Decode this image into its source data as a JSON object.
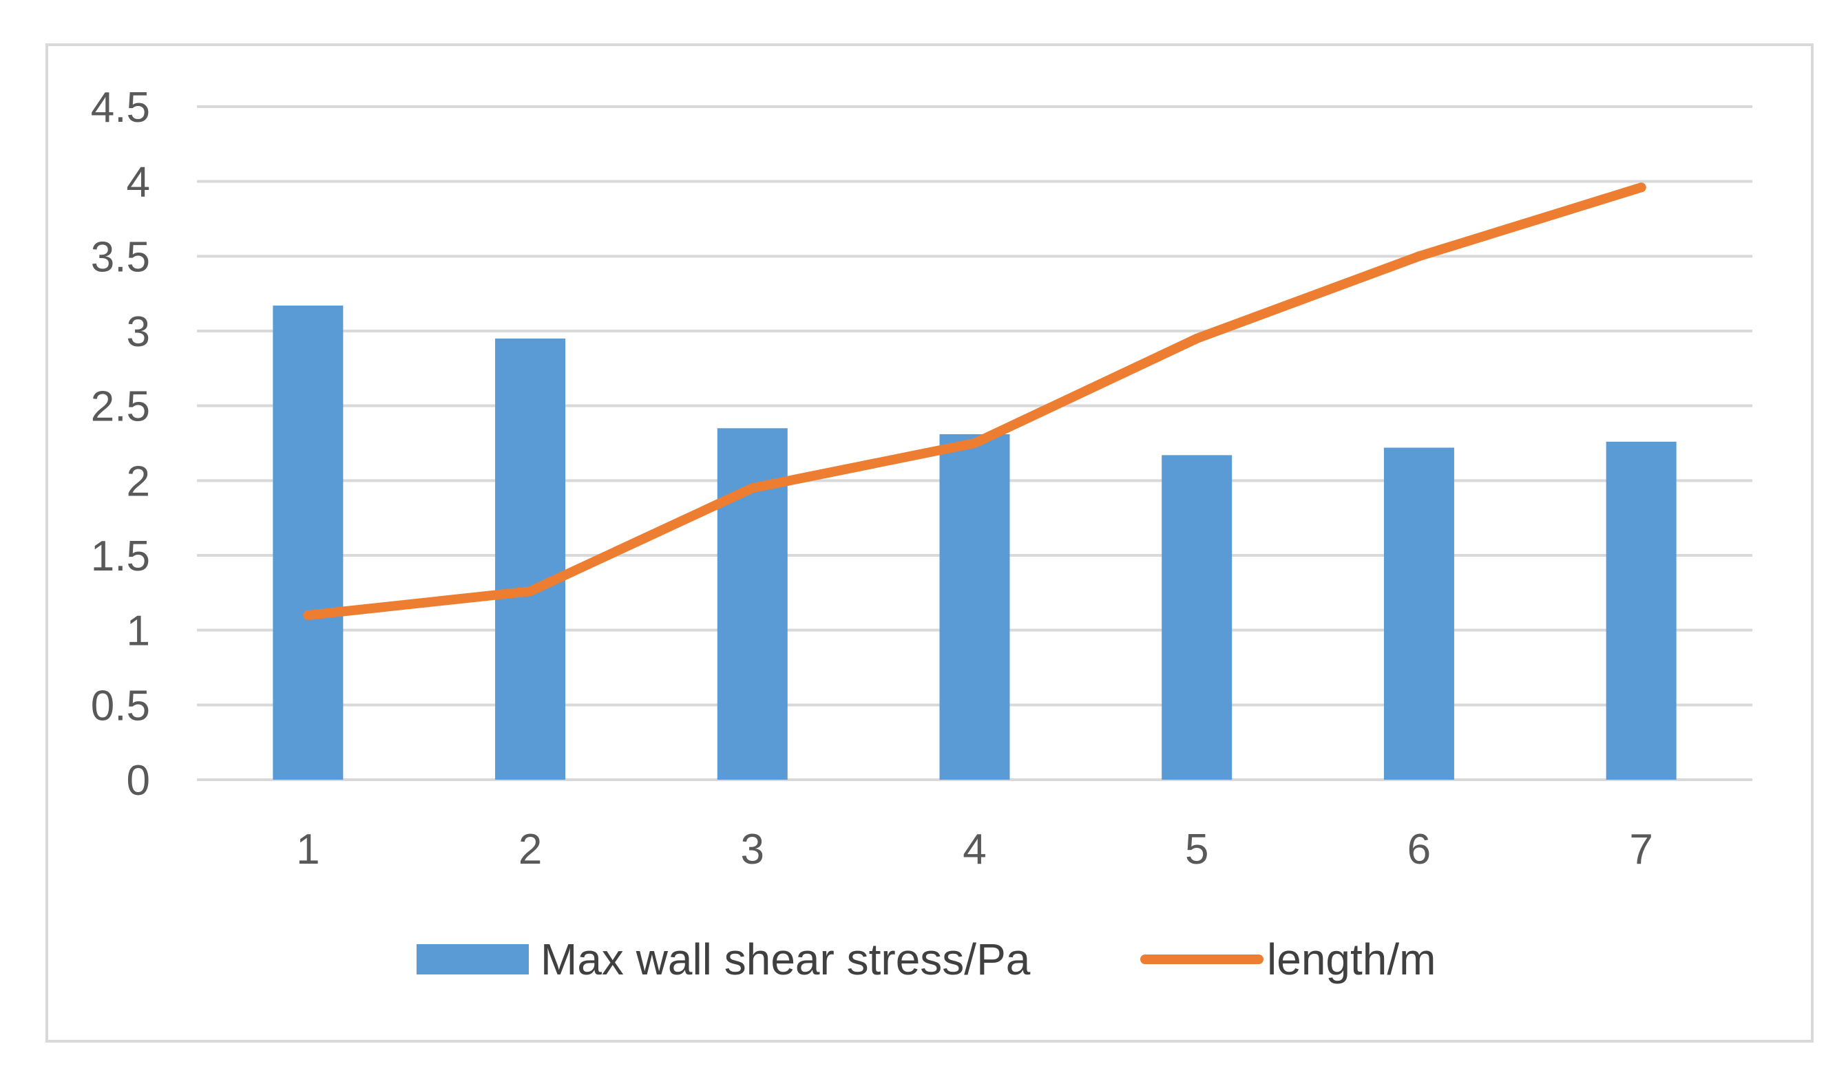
{
  "chart_data": {
    "type": "bar",
    "title": "",
    "xlabel": "",
    "ylabel": "",
    "categories": [
      "1",
      "2",
      "3",
      "4",
      "5",
      "6",
      "7"
    ],
    "ylim": [
      0,
      4.5
    ],
    "yticks": [
      "0",
      "0.5",
      "1",
      "1.5",
      "2",
      "2.5",
      "3",
      "3.5",
      "4",
      "4.5"
    ],
    "grid": true,
    "legend_position": "bottom",
    "series": [
      {
        "name": "Max wall shear stress/Pa",
        "type": "bar",
        "color": "#5b9bd5",
        "values": [
          3.17,
          2.95,
          2.35,
          2.31,
          2.17,
          2.22,
          2.26
        ]
      },
      {
        "name": "length/m",
        "type": "line",
        "color": "#ed7d31",
        "values": [
          1.1,
          1.26,
          1.95,
          2.25,
          2.95,
          3.5,
          3.96
        ]
      }
    ]
  }
}
